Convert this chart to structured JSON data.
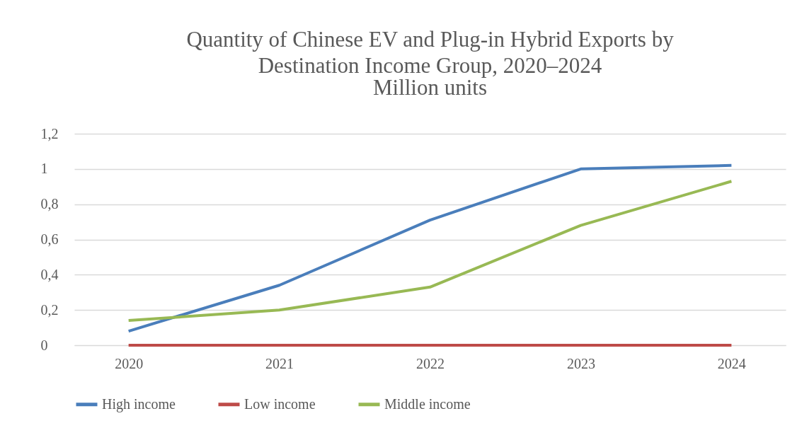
{
  "chart_data": {
    "type": "line",
    "title": "Quantity of Chinese EV and Plug-in Hybrid Exports by Destination Income Group, 2020–2024",
    "subtitle": "Million units",
    "categories": [
      "2020",
      "2021",
      "2022",
      "2023",
      "2024"
    ],
    "series": [
      {
        "name": "High income",
        "color": "#4a7ebb",
        "values": [
          0.08,
          0.34,
          0.71,
          1.0,
          1.02
        ]
      },
      {
        "name": "Low income",
        "color": "#be4b48",
        "values": [
          0,
          0,
          0,
          0,
          0
        ]
      },
      {
        "name": "Middle income",
        "color": "#98b954",
        "values": [
          0.14,
          0.2,
          0.33,
          0.68,
          0.93
        ]
      }
    ],
    "ylim": [
      0,
      1.2
    ],
    "yticks": [
      0,
      {
        "value": 0.2,
        "label": "0,2"
      },
      {
        "value": 0.4,
        "label": "0,4"
      },
      {
        "value": 0.6,
        "label": "0,6"
      },
      {
        "value": 0.8,
        "label": "0,8"
      },
      1,
      {
        "value": 1.2,
        "label": "1,2"
      }
    ],
    "grid": "y",
    "legend": "bottom",
    "marker": "none",
    "line_style": "solid"
  }
}
